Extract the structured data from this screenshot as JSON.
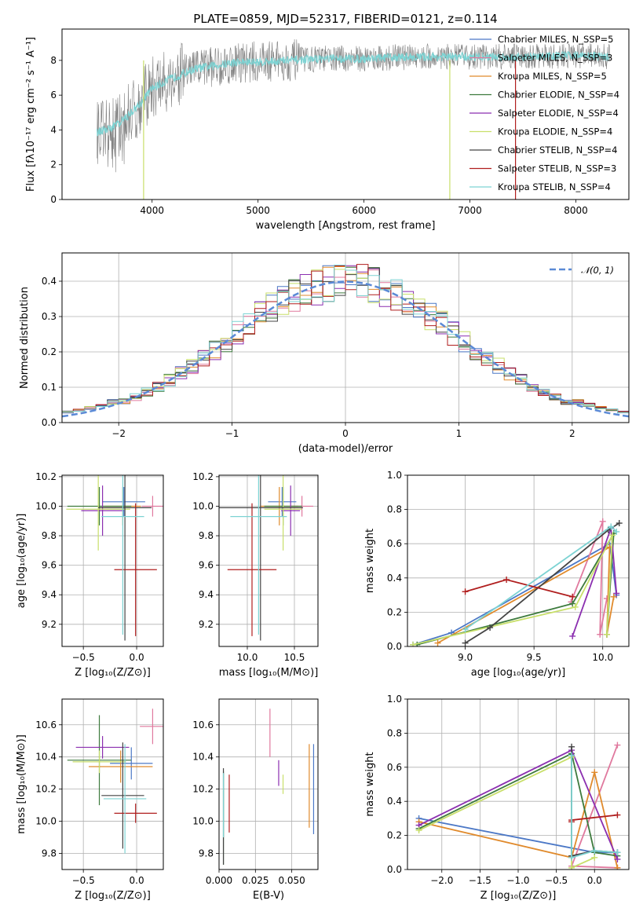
{
  "colors": {
    "Chabrier MILES": "#4c78c6",
    "Salpeter MILES": "#e0799e",
    "Kroupa MILES": "#e08a2c",
    "Chabrier ELODIE": "#3d7a3d",
    "Salpeter ELODIE": "#8b2fb0",
    "Kroupa ELODIE": "#c8df6a",
    "Chabrier STELIB": "#444444",
    "Salpeter STELIB": "#b01e1e",
    "Kroupa STELIB": "#7dd3d3",
    "gray": "#808080",
    "gauss": "#5b8ad6"
  },
  "chart_data": [
    {
      "id": "spectrum",
      "type": "line",
      "title": "PLATE=0859, MJD=52317, FIBERID=0121, z=0.114",
      "xlabel": "wavelength [Angstrom, rest frame]",
      "ylabel": "Flux [fλ10⁻¹⁷ erg cm⁻² s⁻¹ A⁻¹]",
      "xlim": [
        3150,
        8500
      ],
      "ylim": [
        0,
        9.8
      ],
      "xticks": [
        4000,
        5000,
        6000,
        7000,
        8000
      ],
      "yticks": [
        0,
        2,
        4,
        6,
        8
      ],
      "legend_position": "upper-right",
      "legend": [
        "Chabrier MILES, N_SSP=5",
        "Salpeter MILES, N_SSP=3",
        "Kroupa MILES, N_SSP=5",
        "Chabrier ELODIE, N_SSP=4",
        "Salpeter ELODIE, N_SSP=4",
        "Kroupa ELODIE, N_SSP=4",
        "Chabrier STELIB, N_SSP=4",
        "Salpeter STELIB, N_SSP=3",
        "Kroupa STELIB, N_SSP=4"
      ],
      "continuum": {
        "x": [
          3500,
          3600,
          3700,
          3800,
          3900,
          4000,
          4200,
          4400,
          4600,
          4800,
          5000,
          5300,
          5600,
          6000,
          6400,
          6800,
          7200,
          7600,
          8000,
          8300
        ],
        "y": [
          3.9,
          4.1,
          4.4,
          5.0,
          5.6,
          6.4,
          7.0,
          7.5,
          7.7,
          7.9,
          7.9,
          8.0,
          8.1,
          8.1,
          8.2,
          8.2,
          8.2,
          8.2,
          8.3,
          8.2
        ]
      }
    },
    {
      "id": "residuals",
      "type": "bar",
      "xlabel": "(data-model)/error",
      "ylabel": "Normed distribution",
      "xlim": [
        -2.5,
        2.5
      ],
      "ylim": [
        0,
        0.48
      ],
      "xticks": [
        -2,
        -1,
        0,
        1,
        2
      ],
      "yticks": [
        0.0,
        0.1,
        0.2,
        0.3,
        0.4
      ],
      "legend": [
        "𝒩(0, 1)"
      ],
      "bin_width": 0.1
    },
    {
      "id": "z-age",
      "type": "scatter",
      "xlabel": "Z [log₁₀(Z/Z⊙)]",
      "ylabel": "age  [log₁₀(age/yr)]",
      "xlim": [
        -0.7,
        0.25
      ],
      "ylim": [
        9.05,
        10.21
      ],
      "xticks": [
        -0.5,
        0.0
      ],
      "yticks": [
        9.2,
        9.4,
        9.6,
        9.8,
        10.0,
        10.2
      ],
      "points": [
        {
          "x": -0.12,
          "y": 10.03,
          "xerr": 0.2,
          "yerr": 0.1,
          "model": "Chabrier MILES"
        },
        {
          "x": 0.15,
          "y": 10.0,
          "xerr": 0.1,
          "yerr": 0.07,
          "model": "Salpeter MILES"
        },
        {
          "x": -0.13,
          "y": 10.0,
          "xerr": 0.17,
          "yerr": 0.13,
          "model": "Kroupa MILES"
        },
        {
          "x": -0.35,
          "y": 10.0,
          "xerr": 0.3,
          "yerr": 0.13,
          "model": "Chabrier ELODIE"
        },
        {
          "x": -0.32,
          "y": 9.97,
          "xerr": 0.2,
          "yerr": 0.17,
          "model": "Salpeter ELODIE"
        },
        {
          "x": -0.36,
          "y": 9.98,
          "xerr": 0.3,
          "yerr": 0.28,
          "model": "Kroupa ELODIE"
        },
        {
          "x": -0.11,
          "y": 9.99,
          "xerr": 0.25,
          "yerr": 0.9,
          "model": "Chabrier STELIB"
        },
        {
          "x": -0.01,
          "y": 9.57,
          "xerr": 0.2,
          "yerr": 0.45,
          "model": "Salpeter STELIB"
        },
        {
          "x": -0.13,
          "y": 9.93,
          "xerr": 0.2,
          "yerr": 0.8,
          "model": "Kroupa STELIB"
        }
      ]
    },
    {
      "id": "mass-age",
      "type": "scatter",
      "xlabel": "mass [log₁₀(M/M⊙)]",
      "xlim": [
        9.7,
        10.75
      ],
      "ylim": [
        9.05,
        10.21
      ],
      "xticks": [
        10.0,
        10.5
      ],
      "yticks": [
        9.2,
        9.4,
        9.6,
        9.8,
        10.0,
        10.2
      ],
      "points": [
        {
          "x": 10.37,
          "y": 10.03,
          "xerr": 0.15,
          "yerr": 0.1,
          "model": "Chabrier MILES"
        },
        {
          "x": 10.58,
          "y": 10.0,
          "xerr": 0.12,
          "yerr": 0.07,
          "model": "Salpeter MILES"
        },
        {
          "x": 10.34,
          "y": 10.0,
          "xerr": 0.2,
          "yerr": 0.13,
          "model": "Kroupa MILES"
        },
        {
          "x": 10.38,
          "y": 10.0,
          "xerr": 0.2,
          "yerr": 0.13,
          "model": "Chabrier ELODIE"
        },
        {
          "x": 10.46,
          "y": 9.97,
          "xerr": 0.1,
          "yerr": 0.17,
          "model": "Salpeter ELODIE"
        },
        {
          "x": 10.38,
          "y": 9.98,
          "xerr": 0.2,
          "yerr": 0.28,
          "model": "Kroupa ELODIE"
        },
        {
          "x": 10.14,
          "y": 9.99,
          "xerr": 0.45,
          "yerr": 0.9,
          "model": "Chabrier STELIB"
        },
        {
          "x": 10.05,
          "y": 9.57,
          "xerr": 0.26,
          "yerr": 0.45,
          "model": "Salpeter STELIB"
        },
        {
          "x": 10.12,
          "y": 9.93,
          "xerr": 0.3,
          "yerr": 0.8,
          "model": "Kroupa STELIB"
        }
      ]
    },
    {
      "id": "age-weight",
      "type": "line",
      "xlabel": "age  [log₁₀(age/yr)]",
      "ylabel": "mass weight",
      "xlim": [
        8.58,
        10.19
      ],
      "ylim": [
        0,
        1
      ],
      "xticks": [
        9.0,
        9.5,
        10.0
      ],
      "yticks": [
        0.0,
        0.2,
        0.4,
        0.6,
        0.8,
        1.0
      ],
      "series": [
        {
          "model": "Chabrier MILES",
          "x": [
            8.62,
            8.9,
            10.05,
            10.1
          ],
          "y": [
            0.01,
            0.08,
            0.6,
            0.3
          ]
        },
        {
          "model": "Salpeter MILES",
          "x": [
            9.77,
            10.0,
            9.98,
            10.03
          ],
          "y": [
            0.26,
            0.73,
            0.07,
            0.28
          ]
        },
        {
          "model": "Kroupa MILES",
          "x": [
            8.8,
            10.05,
            10.03,
            10.08
          ],
          "y": [
            0.02,
            0.58,
            0.07,
            0.29
          ]
        },
        {
          "model": "Chabrier ELODIE",
          "x": [
            8.65,
            9.78,
            10.08,
            10.03
          ],
          "y": [
            0.01,
            0.25,
            0.66,
            0.07
          ]
        },
        {
          "model": "Salpeter ELODIE",
          "x": [
            9.78,
            10.06,
            10.1
          ],
          "y": [
            0.06,
            0.69,
            0.31
          ]
        },
        {
          "model": "Kroupa ELODIE",
          "x": [
            8.62,
            9.8,
            10.07,
            10.03
          ],
          "y": [
            0.01,
            0.23,
            0.65,
            0.07
          ]
        },
        {
          "model": "Chabrier STELIB",
          "x": [
            9.0,
            9.18,
            10.04,
            10.12
          ],
          "y": [
            0.02,
            0.11,
            0.68,
            0.72
          ]
        },
        {
          "model": "Salpeter STELIB",
          "x": [
            9.0,
            9.3,
            9.78
          ],
          "y": [
            0.32,
            0.39,
            0.29
          ]
        },
        {
          "model": "Kroupa STELIB",
          "x": [
            9.0,
            10.06,
            10.1
          ],
          "y": [
            0.1,
            0.7,
            0.67
          ]
        }
      ]
    },
    {
      "id": "z-mass",
      "type": "scatter",
      "xlabel": "Z [log₁₀(Z/Z⊙)]",
      "ylabel": "mass [log₁₀(M/M⊙)]",
      "xlim": [
        -0.7,
        0.25
      ],
      "ylim": [
        9.7,
        10.76
      ],
      "xticks": [
        -0.5,
        0.0
      ],
      "yticks": [
        9.8,
        10.0,
        10.2,
        10.4,
        10.6
      ],
      "points": [
        {
          "x": -0.05,
          "y": 10.36,
          "xerr": 0.2,
          "yerr": 0.1,
          "model": "Chabrier MILES"
        },
        {
          "x": 0.15,
          "y": 10.59,
          "xerr": 0.12,
          "yerr": 0.11,
          "model": "Salpeter MILES"
        },
        {
          "x": -0.15,
          "y": 10.34,
          "xerr": 0.3,
          "yerr": 0.1,
          "model": "Kroupa MILES"
        },
        {
          "x": -0.35,
          "y": 10.38,
          "xerr": 0.3,
          "yerr": 0.28,
          "model": "Chabrier ELODIE"
        },
        {
          "x": -0.32,
          "y": 10.46,
          "xerr": 0.25,
          "yerr": 0.07,
          "model": "Salpeter ELODIE"
        },
        {
          "x": -0.35,
          "y": 10.37,
          "xerr": 0.25,
          "yerr": 0.07,
          "model": "Kroupa ELODIE"
        },
        {
          "x": -0.13,
          "y": 10.16,
          "xerr": 0.2,
          "yerr": 0.33,
          "model": "Chabrier STELIB"
        },
        {
          "x": -0.01,
          "y": 10.05,
          "xerr": 0.2,
          "yerr": 0.06,
          "model": "Salpeter STELIB"
        },
        {
          "x": -0.11,
          "y": 10.14,
          "xerr": 0.2,
          "yerr": 0.34,
          "model": "Kroupa STELIB"
        }
      ]
    },
    {
      "id": "ebv-mass",
      "type": "scatter",
      "xlabel": "E(B-V)",
      "xlim": [
        0.0,
        0.068
      ],
      "ylim": [
        9.7,
        10.76
      ],
      "xticks": [
        0.0,
        0.025,
        0.05
      ],
      "xtick_labels": [
        "0.000",
        "0.025",
        "0.050"
      ],
      "yticks": [
        9.8,
        10.0,
        10.2,
        10.4,
        10.6
      ],
      "points": [
        {
          "x": 0.065,
          "y": 10.2,
          "yerr": 0.28,
          "model": "Chabrier MILES"
        },
        {
          "x": 0.035,
          "y": 10.55,
          "yerr": 0.15,
          "model": "Salpeter MILES"
        },
        {
          "x": 0.062,
          "y": 10.22,
          "yerr": 0.26,
          "model": "Kroupa MILES"
        },
        {
          "x": 0.003,
          "y": 10.02,
          "yerr": 0.29,
          "model": "Chabrier ELODIE"
        },
        {
          "x": 0.041,
          "y": 10.3,
          "yerr": 0.08,
          "model": "Salpeter ELODIE"
        },
        {
          "x": 0.044,
          "y": 10.23,
          "yerr": 0.06,
          "model": "Kroupa ELODIE"
        },
        {
          "x": 0.003,
          "y": 10.03,
          "yerr": 0.3,
          "model": "Chabrier STELIB"
        },
        {
          "x": 0.007,
          "y": 10.11,
          "yerr": 0.18,
          "model": "Salpeter STELIB"
        },
        {
          "x": 0.003,
          "y": 10.1,
          "yerr": 0.2,
          "model": "Kroupa STELIB"
        }
      ]
    },
    {
      "id": "z-weight",
      "type": "line",
      "xlabel": "Z [log₁₀(Z/Z⊙)]",
      "ylabel": "mass weight",
      "xlim": [
        -2.45,
        0.45
      ],
      "ylim": [
        0,
        1
      ],
      "xticks": [
        -2.0,
        -1.5,
        -1.0,
        -0.5,
        0.0
      ],
      "yticks": [
        0.0,
        0.2,
        0.4,
        0.6,
        0.8,
        1.0
      ],
      "series": [
        {
          "model": "Chabrier MILES",
          "x": [
            -2.3,
            0.0,
            0.3
          ],
          "y": [
            0.3,
            0.1,
            0.1
          ]
        },
        {
          "model": "Salpeter MILES",
          "x": [
            0.3,
            -0.3,
            0.3,
            0.3
          ],
          "y": [
            0.73,
            0.02,
            0.01,
            0.01
          ]
        },
        {
          "model": "Kroupa MILES",
          "x": [
            -2.3,
            -0.3,
            0.0,
            0.3
          ],
          "y": [
            0.28,
            0.07,
            0.57,
            0.01
          ]
        },
        {
          "model": "Chabrier ELODIE",
          "x": [
            -2.3,
            -0.3,
            0.0,
            0.3
          ],
          "y": [
            0.24,
            0.68,
            0.1,
            0.08
          ]
        },
        {
          "model": "Salpeter ELODIE",
          "x": [
            -2.3,
            -0.3,
            0.3
          ],
          "y": [
            0.26,
            0.7,
            0.06
          ]
        },
        {
          "model": "Kroupa ELODIE",
          "x": [
            -2.3,
            -0.3,
            -0.3,
            0.0
          ],
          "y": [
            0.23,
            0.66,
            0.01,
            0.07
          ]
        },
        {
          "model": "Chabrier STELIB",
          "x": [
            -0.3,
            -0.3,
            0.0,
            0.3
          ],
          "y": [
            0.72,
            0.08,
            0.11,
            0.1
          ]
        },
        {
          "model": "Salpeter STELIB",
          "x": [
            -0.3,
            -0.3,
            0.3
          ],
          "y": [
            0.28,
            0.29,
            0.32
          ]
        },
        {
          "model": "Kroupa STELIB",
          "x": [
            -0.3,
            -0.3,
            0.0,
            0.3
          ],
          "y": [
            0.67,
            0.07,
            0.11,
            0.1
          ]
        }
      ]
    }
  ]
}
